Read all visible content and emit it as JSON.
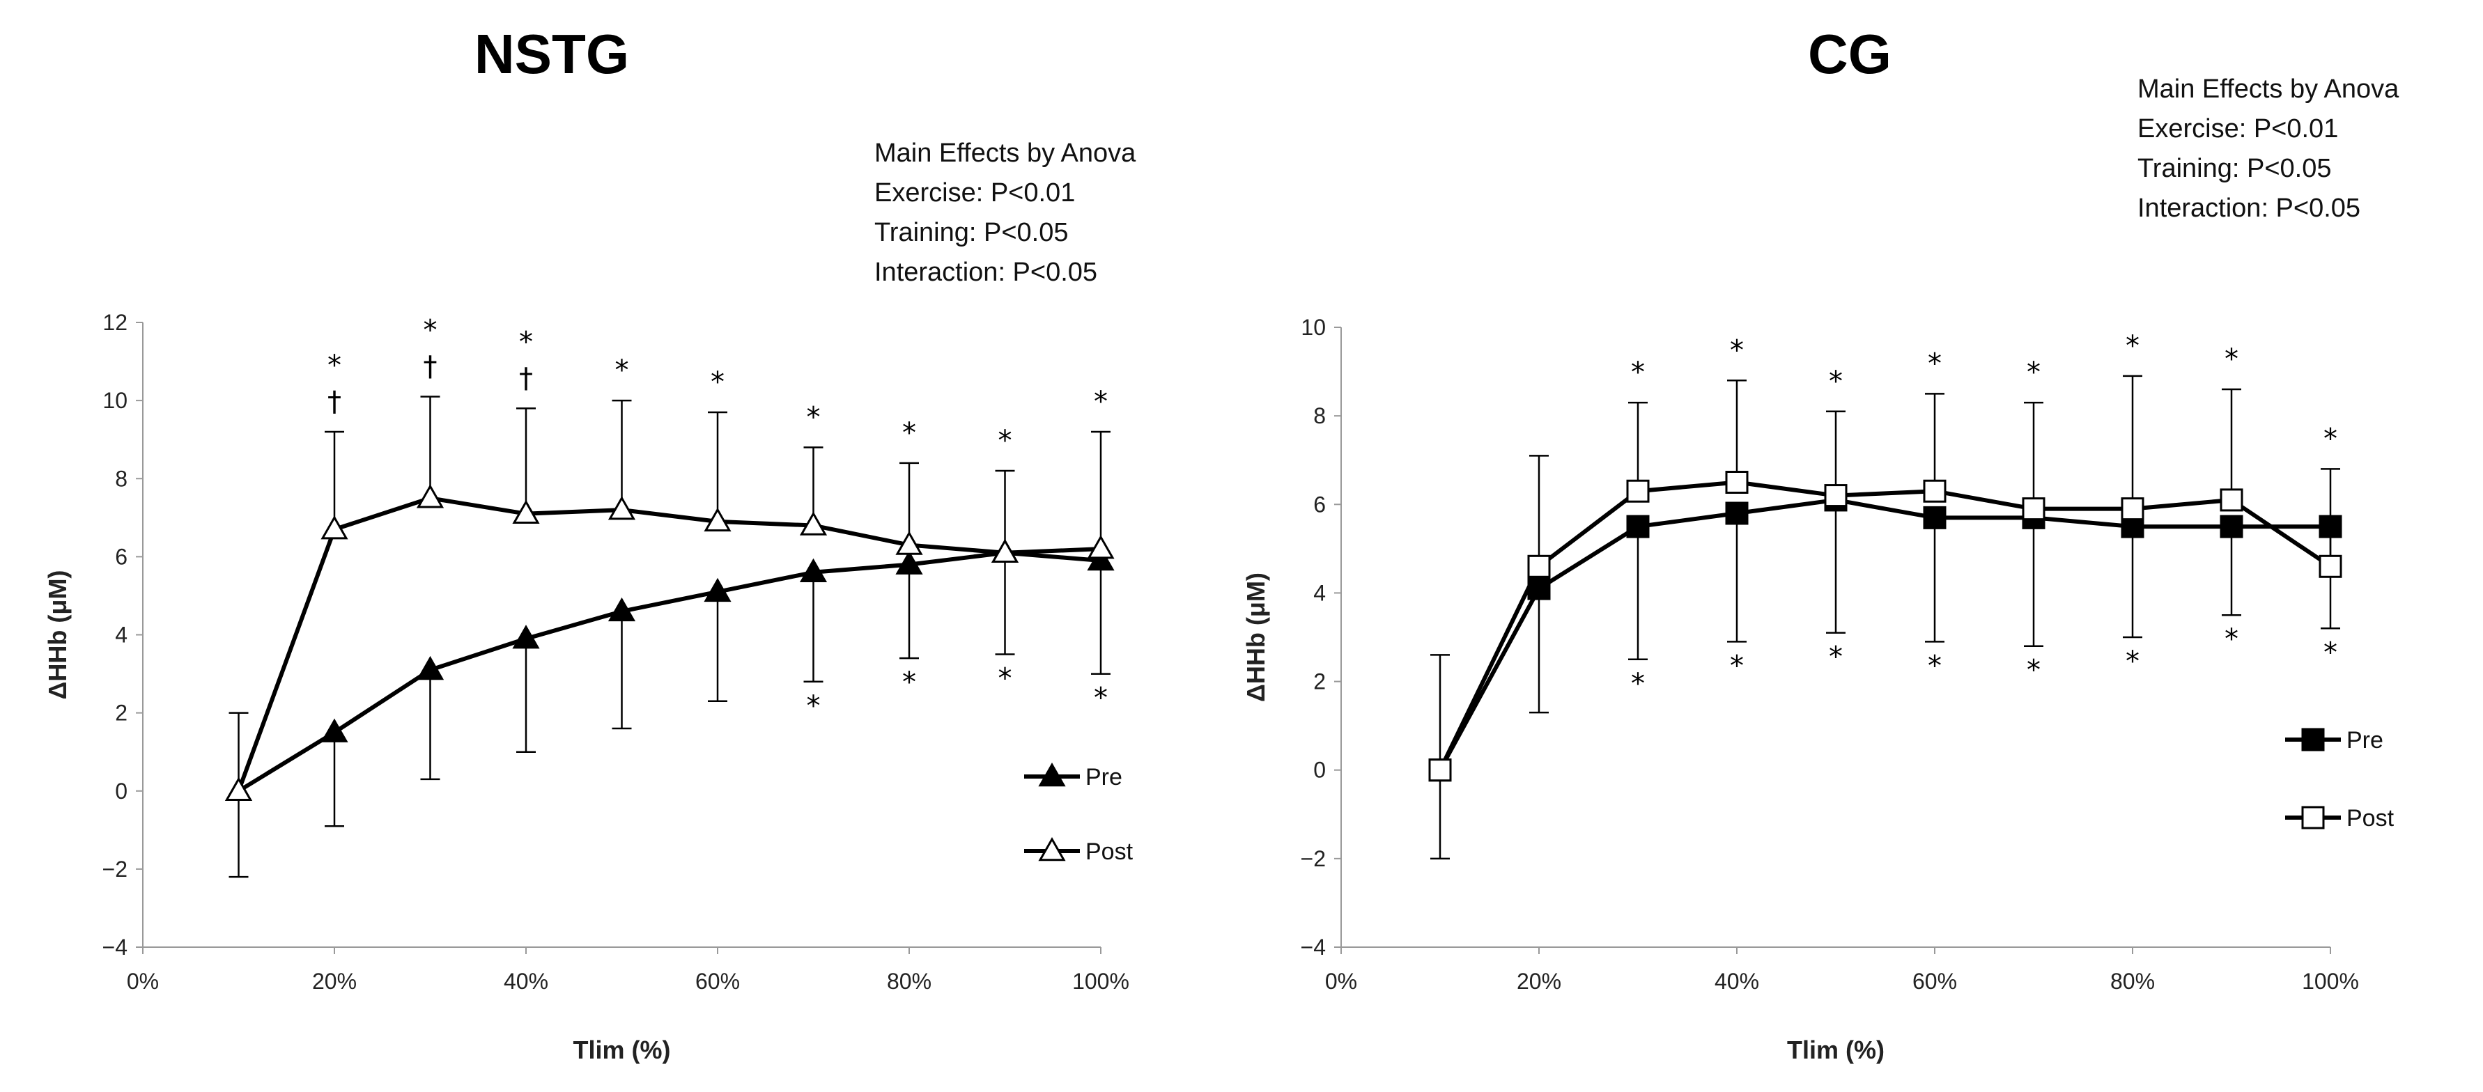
{
  "chart_data": [
    {
      "type": "line",
      "title": "NSTG",
      "xlabel": "Tlim (%)",
      "ylabel": "ΔHHb (μM)",
      "xlim": [
        0,
        100
      ],
      "ylim": [
        -4,
        12
      ],
      "xticks": [
        "0%",
        "20%",
        "40%",
        "60%",
        "80%",
        "100%"
      ],
      "yticks": [
        "-4",
        "-2",
        "0",
        "2",
        "4",
        "6",
        "8",
        "10",
        "12"
      ],
      "x": [
        10,
        20,
        30,
        40,
        50,
        60,
        70,
        80,
        90,
        100
      ],
      "series": [
        {
          "name": "Pre",
          "marker": "filled-triangle",
          "values": [
            0.0,
            1.5,
            3.1,
            3.9,
            4.6,
            5.1,
            5.6,
            5.8,
            6.1,
            5.9
          ],
          "error_low": [
            2.2,
            2.4,
            2.8,
            2.9,
            3.0,
            2.8,
            2.8,
            2.4,
            2.6,
            2.9
          ]
        },
        {
          "name": "Post",
          "marker": "open-triangle",
          "values": [
            0.0,
            6.7,
            7.5,
            7.1,
            7.2,
            6.9,
            6.8,
            6.3,
            6.1,
            6.2
          ],
          "error_high": [
            2.0,
            2.5,
            2.6,
            2.7,
            2.8,
            2.8,
            2.0,
            2.1,
            2.1,
            3.0
          ]
        }
      ],
      "significance_above": [
        "",
        "*\n†",
        "*\n†",
        "*\n†",
        "*",
        "*",
        "*",
        "*",
        "*",
        "*"
      ],
      "significance_below": [
        "",
        "",
        "",
        "",
        "",
        "",
        "*",
        "*",
        "*",
        "*"
      ],
      "annotation": [
        "Main Effects by Anova",
        "Exercise: P<0.01",
        "Training: P<0.05",
        "Interaction: P<0.05"
      ],
      "legend_position": "right"
    },
    {
      "type": "line",
      "title": "CG",
      "xlabel": "Tlim (%)",
      "ylabel": "ΔHHb (μM)",
      "xlim": [
        0,
        100
      ],
      "ylim": [
        -4,
        10
      ],
      "xticks": [
        "0%",
        "20%",
        "40%",
        "60%",
        "80%",
        "100%"
      ],
      "yticks": [
        "-4",
        "-2",
        "0",
        "2",
        "4",
        "6",
        "8",
        "10"
      ],
      "x": [
        10,
        20,
        30,
        40,
        50,
        60,
        70,
        80,
        90,
        100
      ],
      "series": [
        {
          "name": "Pre",
          "marker": "filled-square",
          "values": [
            0.0,
            4.1,
            5.5,
            5.8,
            6.1,
            5.7,
            5.7,
            5.5,
            5.5,
            5.5
          ],
          "error_low": [
            2.0,
            2.8,
            3.0,
            2.9,
            3.0,
            2.8,
            2.9,
            2.5,
            2.0,
            2.3
          ]
        },
        {
          "name": "Post",
          "marker": "open-square",
          "values": [
            0.0,
            4.6,
            6.3,
            6.5,
            6.2,
            6.3,
            5.9,
            5.9,
            6.1,
            4.6
          ],
          "error_high": [
            2.6,
            2.5,
            2.0,
            2.3,
            1.9,
            2.2,
            2.4,
            3.0,
            2.5,
            2.2
          ]
        }
      ],
      "significance_above": [
        "",
        "",
        "*",
        "*",
        "*",
        "*",
        "*",
        "*",
        "*",
        "*"
      ],
      "significance_below": [
        "",
        "",
        "*",
        "*",
        "*",
        "*",
        "*",
        "*",
        "*",
        "*"
      ],
      "annotation": [
        "Main Effects by Anova",
        "Exercise: P<0.01",
        "Training: P<0.05",
        "Interaction: P<0.05"
      ],
      "legend_position": "right"
    }
  ]
}
